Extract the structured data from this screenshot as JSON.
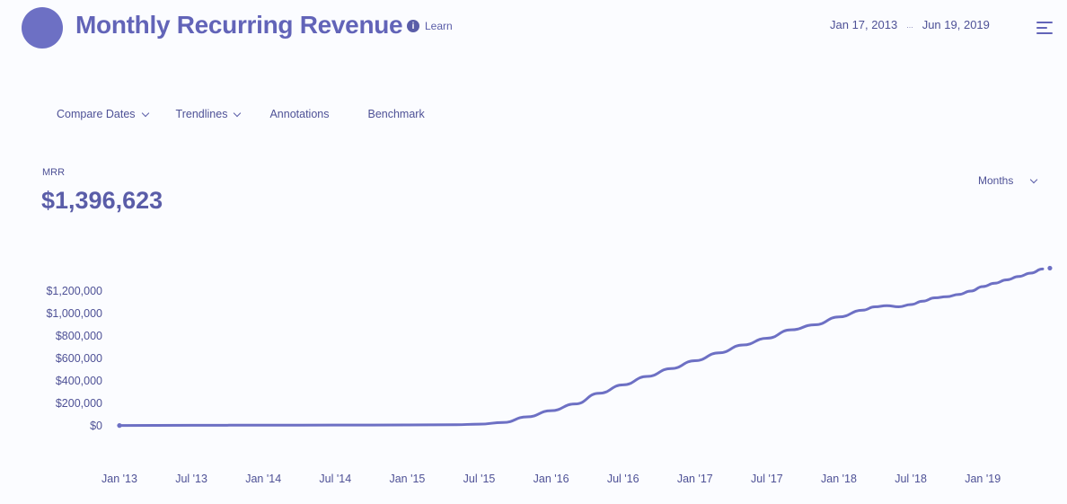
{
  "header": {
    "title": "Monthly Recurring Revenue",
    "learn_label": "Learn",
    "date_start": "Jan 17, 2013",
    "date_sep": "...",
    "date_end": "Jun 19, 2019"
  },
  "toolbar": {
    "compare_dates": "Compare Dates",
    "trendlines": "Trendlines",
    "annotations": "Annotations",
    "benchmark": "Benchmark"
  },
  "metric": {
    "label": "MRR",
    "value": "$1,396,623"
  },
  "period_select": {
    "selected": "Months"
  },
  "colors": {
    "accent": "#6264b8",
    "line": "#6d70c4"
  },
  "chart_data": {
    "type": "line",
    "ylabel": "",
    "xlabel": "",
    "y_tick_values": [
      0,
      200000,
      400000,
      600000,
      800000,
      1000000,
      1200000
    ],
    "y_tick_labels": [
      "$0",
      "$200,000",
      "$400,000",
      "$600,000",
      "$800,000",
      "$1,000,000",
      "$1,200,000"
    ],
    "x_tick_labels": [
      "Jan '13",
      "Jul '13",
      "Jan '14",
      "Jul '14",
      "Jan '15",
      "Jul '15",
      "Jan '16",
      "Jul '16",
      "Jan '17",
      "Jul '17",
      "Jan '18",
      "Jul '18",
      "Jan '19"
    ],
    "x_tick_months": [
      0,
      6,
      12,
      18,
      24,
      30,
      36,
      42,
      48,
      54,
      60,
      66,
      72
    ],
    "ylim": [
      0,
      1400000
    ],
    "series": [
      {
        "months": [
          0,
          6,
          12,
          18,
          24,
          28,
          30,
          32,
          34,
          36,
          38,
          40,
          42,
          44,
          46,
          48,
          50,
          52,
          54,
          56,
          58,
          60,
          62,
          63,
          64,
          65,
          66,
          67,
          68,
          69,
          70,
          71,
          72,
          73,
          74,
          75,
          76,
          77
        ],
        "values": [
          3000,
          5000,
          6000,
          7000,
          8000,
          10000,
          15000,
          30000,
          80000,
          135000,
          195000,
          290000,
          365000,
          440000,
          510000,
          580000,
          650000,
          720000,
          780000,
          855000,
          900000,
          970000,
          1030000,
          1060000,
          1070000,
          1060000,
          1080000,
          1110000,
          1140000,
          1150000,
          1170000,
          1200000,
          1240000,
          1270000,
          1300000,
          1330000,
          1360000,
          1396623
        ]
      }
    ]
  }
}
